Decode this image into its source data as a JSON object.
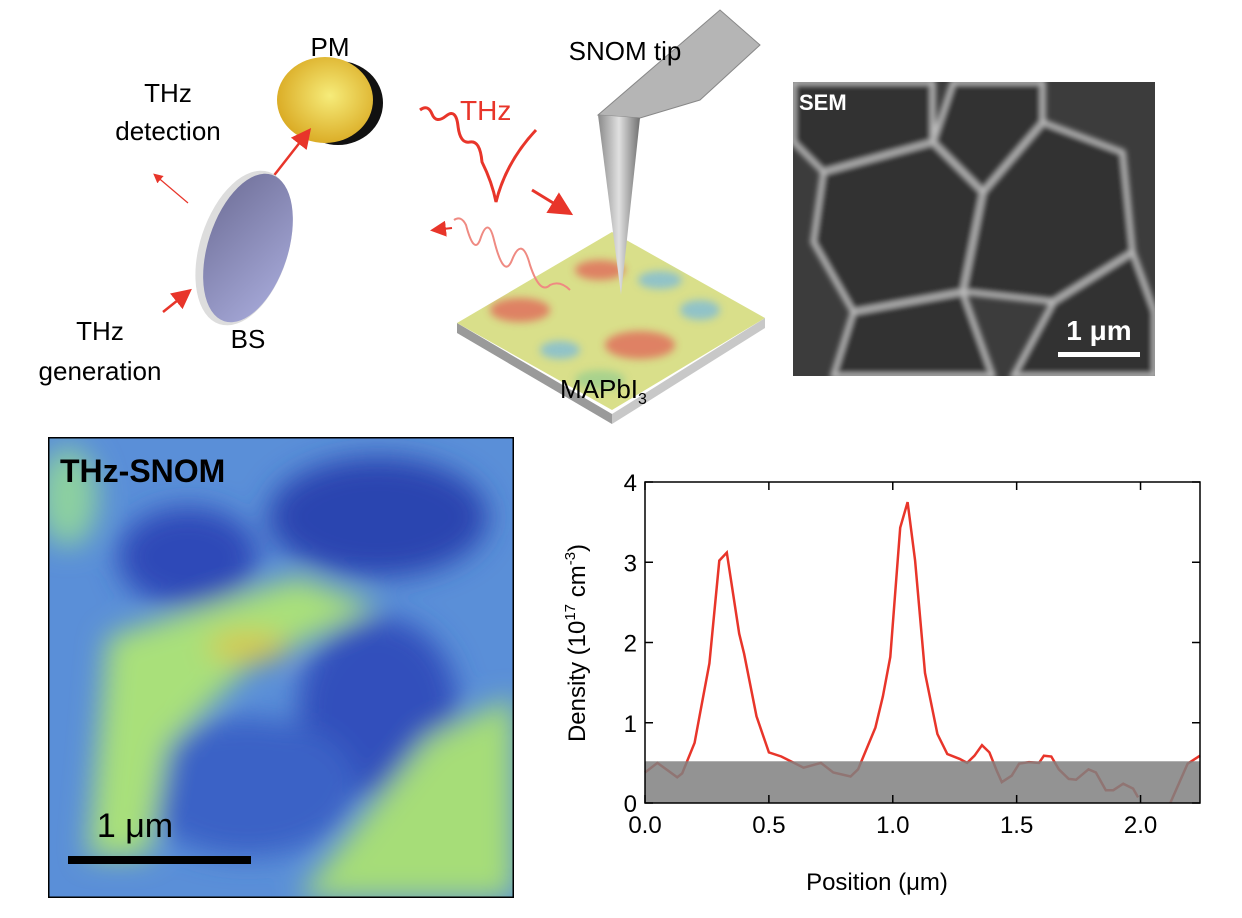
{
  "schematic": {
    "pm_label": "PM",
    "thz_detection_line1": "THz",
    "thz_detection_line2": "detection",
    "thz_generation_line1": "THz",
    "thz_generation_line2": "generation",
    "bs_label": "BS",
    "snom_tip_label": "SNOM tip",
    "thz_label": "THz",
    "sample_label": "MAPbI",
    "sample_label_sub": "3",
    "colors": {
      "thz_red": "#e8352a",
      "pm_gold": "#e8c63a",
      "bs_blue": "#8f93c6",
      "tip_gray": "#a9a9a9"
    }
  },
  "sem": {
    "label": "SEM",
    "scale_bar_label": "1 μm"
  },
  "thz_snom": {
    "label": "THz-SNOM",
    "scale_bar_label": "1 μm"
  },
  "chart_data": {
    "type": "line",
    "title": "",
    "xlabel": "Position (μm)",
    "ylabel_parts": [
      "Density (10",
      "17",
      " cm",
      "-3",
      ")"
    ],
    "xlim": [
      0,
      2.24
    ],
    "ylim": [
      0,
      4
    ],
    "xticks": [
      "0.0",
      "0.5",
      "1.0",
      "1.5",
      "2.0"
    ],
    "yticks": [
      "0",
      "1",
      "2",
      "3",
      "4"
    ],
    "grid": false,
    "line_color": "#e8352a",
    "shaded_band": {
      "y_from": 0,
      "y_to": 0.52,
      "color": "#808080"
    },
    "series": [
      {
        "segments": [
          [
            [
              0,
              0.38
            ],
            [
              0.05,
              0.5
            ],
            [
              0.13,
              0.32
            ],
            [
              0.15,
              0.37
            ],
            [
              0.2,
              0.75
            ],
            [
              0.22,
              1.08
            ],
            [
              0.26,
              1.74
            ],
            [
              0.3,
              3.02
            ],
            [
              0.33,
              3.12
            ],
            [
              0.38,
              2.11
            ],
            [
              0.4,
              1.86
            ],
            [
              0.45,
              1.08
            ],
            [
              0.5,
              0.63
            ],
            [
              0.55,
              0.58
            ],
            [
              0.64,
              0.44
            ],
            [
              0.71,
              0.5
            ],
            [
              0.76,
              0.38
            ],
            [
              0.83,
              0.33
            ],
            [
              0.86,
              0.42
            ],
            [
              0.93,
              0.94
            ],
            [
              0.96,
              1.33
            ],
            [
              0.99,
              1.82
            ],
            [
              1.03,
              3.43
            ],
            [
              1.06,
              3.75
            ],
            [
              1.09,
              3.02
            ],
            [
              1.13,
              1.62
            ],
            [
              1.18,
              0.86
            ],
            [
              1.22,
              0.61
            ],
            [
              1.27,
              0.55
            ],
            [
              1.3,
              0.5
            ],
            [
              1.33,
              0.59
            ],
            [
              1.36,
              0.72
            ],
            [
              1.39,
              0.63
            ],
            [
              1.42,
              0.4
            ],
            [
              1.44,
              0.26
            ],
            [
              1.48,
              0.34
            ],
            [
              1.51,
              0.49
            ],
            [
              1.55,
              0.51
            ],
            [
              1.59,
              0.5
            ],
            [
              1.61,
              0.59
            ],
            [
              1.64,
              0.58
            ],
            [
              1.67,
              0.42
            ],
            [
              1.71,
              0.3
            ],
            [
              1.74,
              0.29
            ],
            [
              1.79,
              0.42
            ],
            [
              1.82,
              0.38
            ],
            [
              1.86,
              0.16
            ],
            [
              1.89,
              0.16
            ],
            [
              1.93,
              0.24
            ],
            [
              1.97,
              0.18
            ],
            [
              1.99,
              0.07
            ]
          ],
          [
            [
              2.12,
              0
            ],
            [
              2.19,
              0.49
            ],
            [
              2.24,
              0.59
            ]
          ]
        ]
      }
    ]
  }
}
